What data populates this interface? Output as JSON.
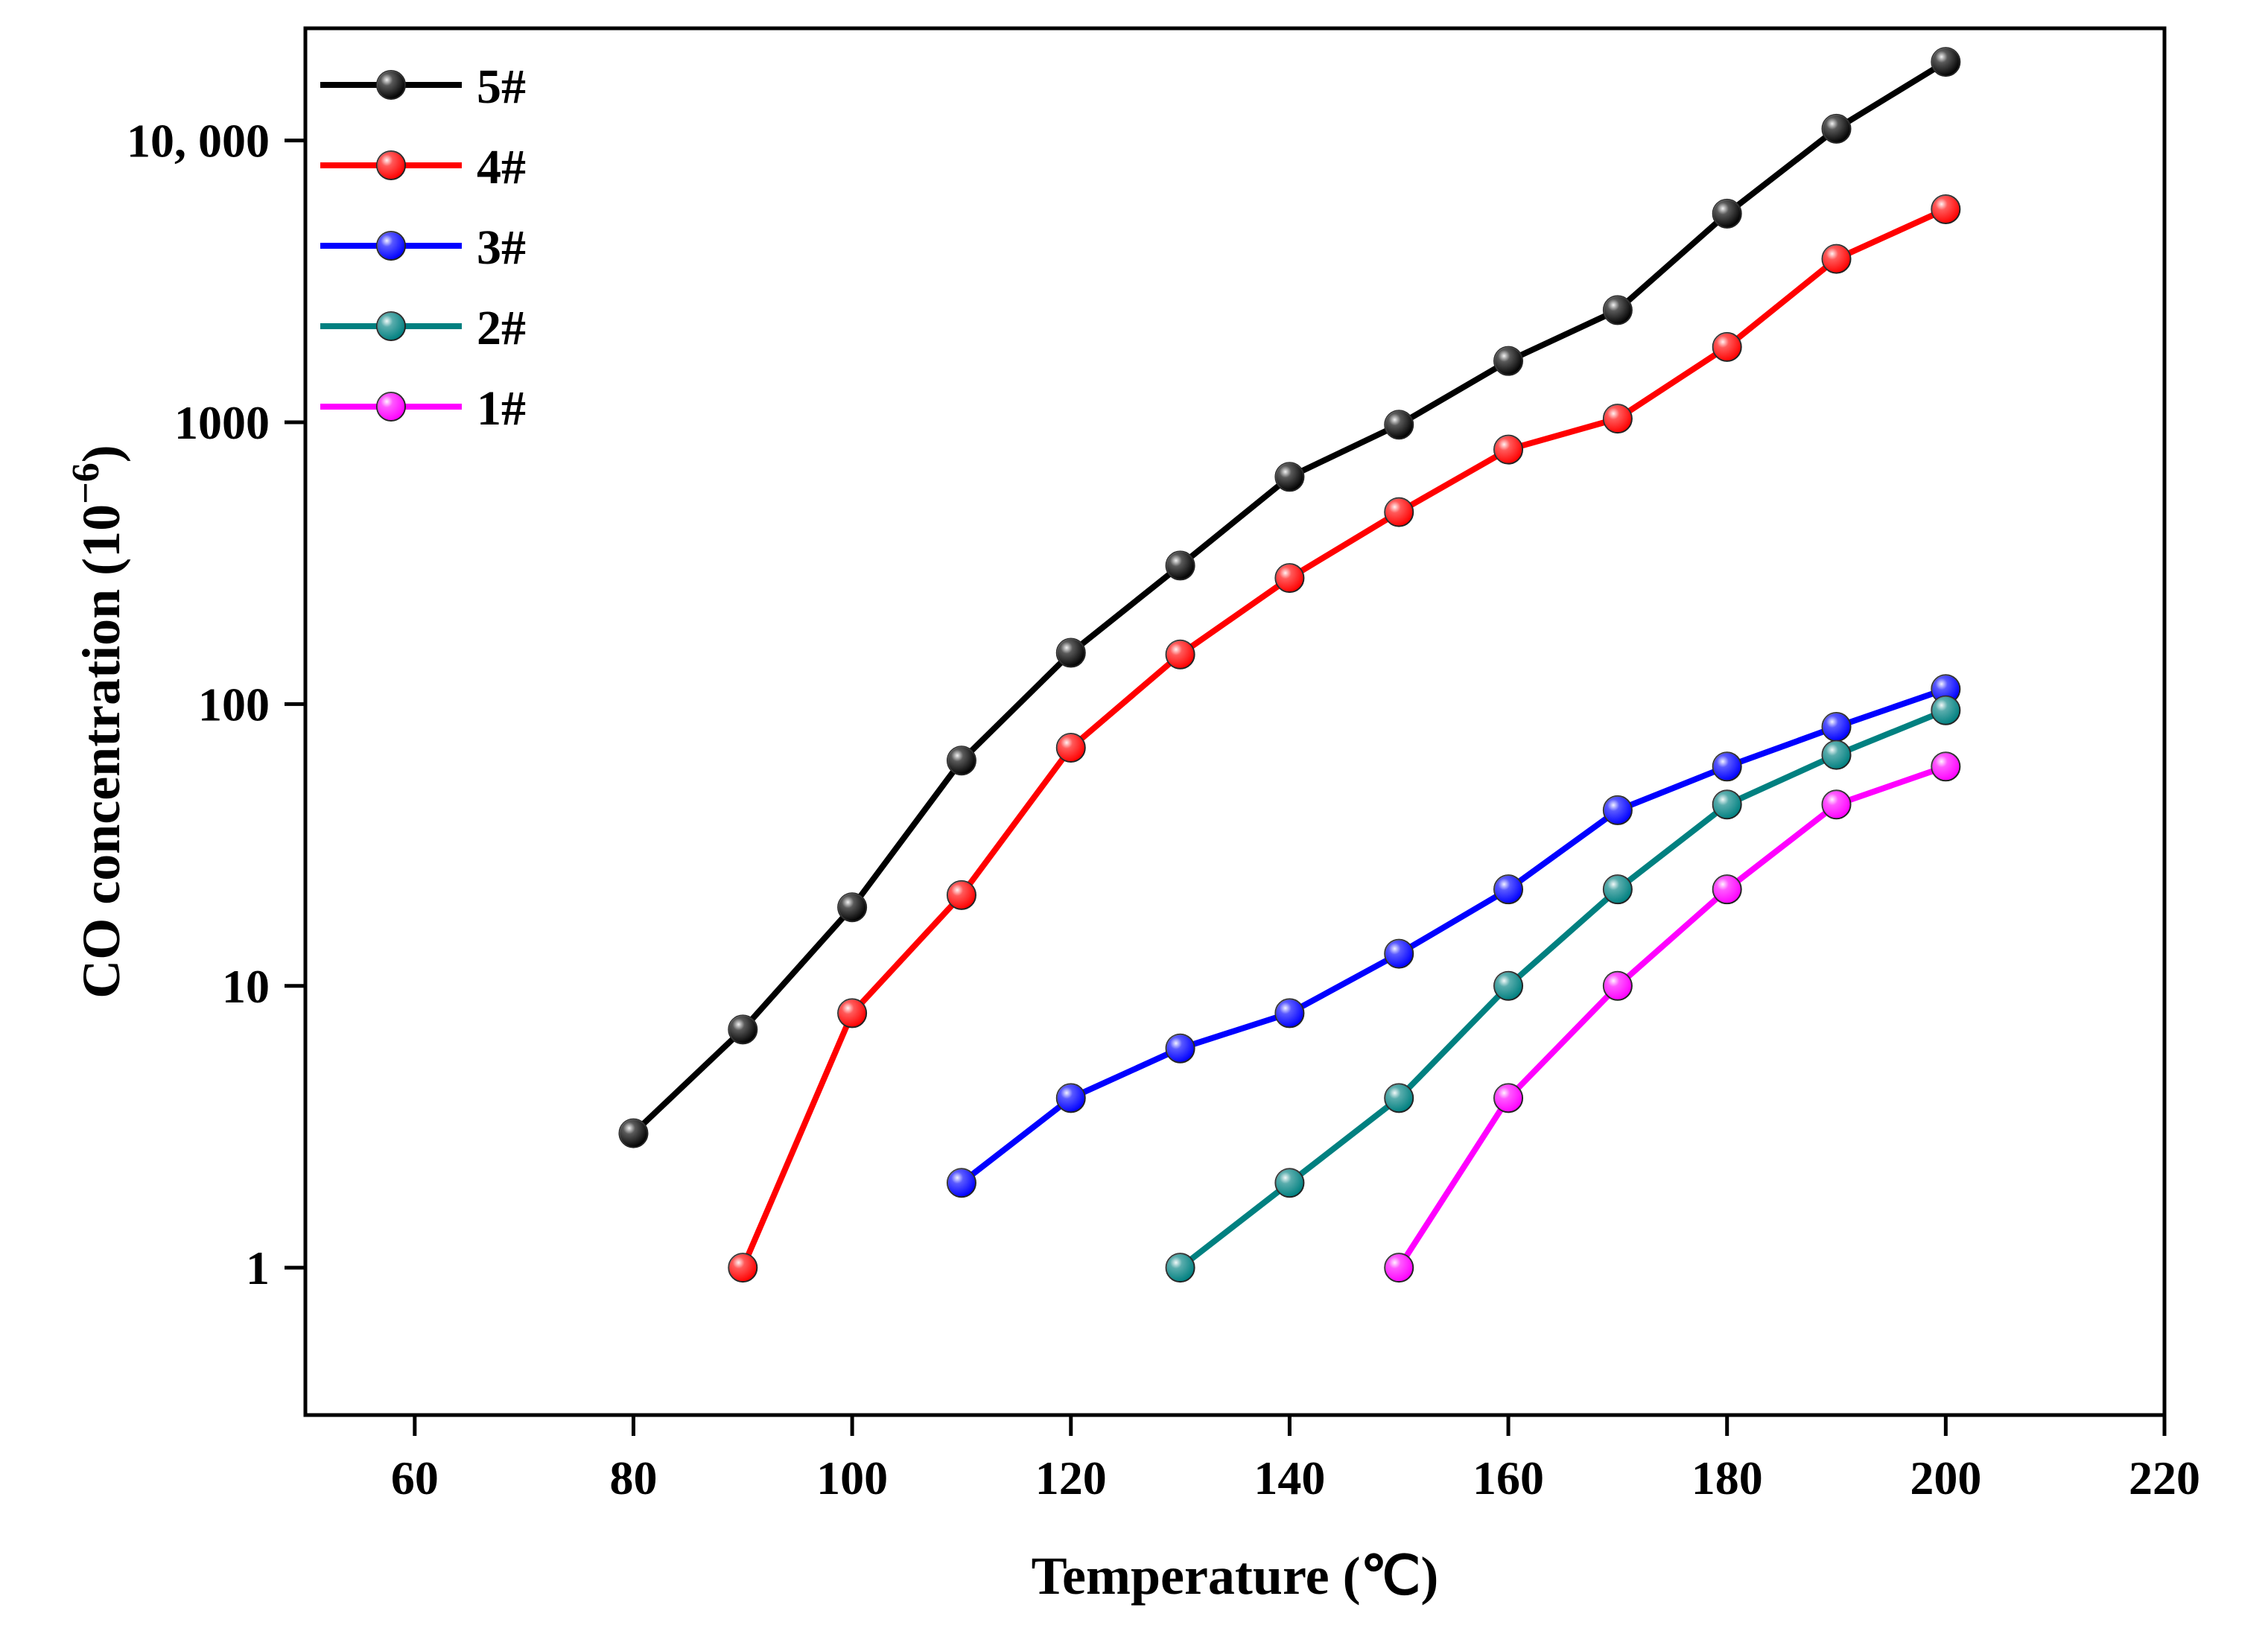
{
  "chart_data": {
    "type": "line",
    "title": "",
    "xlabel": "Temperature (℃)",
    "ylabel": "CO concentration (10",
    "ylabel_superscript": "−6",
    "ylabel_close": ")",
    "xlim": [
      50,
      220
    ],
    "ylim": [
      0.3,
      25000
    ],
    "yscale": "log",
    "x_ticks": [
      60,
      80,
      100,
      120,
      140,
      160,
      180,
      200,
      220
    ],
    "x_tick_labels": [
      "60",
      "80",
      "100",
      "120",
      "140",
      "160",
      "180",
      "200",
      "220"
    ],
    "y_ticks": [
      1,
      10,
      100,
      1000,
      10000
    ],
    "y_tick_labels": [
      "1",
      "10",
      "100",
      "1000",
      "10, 000"
    ],
    "legend_position": "top-left",
    "series": [
      {
        "name": "5#",
        "color": "#000000",
        "x": [
          80,
          90,
          100,
          110,
          120,
          130,
          140,
          150,
          160,
          170,
          180,
          190,
          200
        ],
        "values": [
          3,
          7,
          19,
          63,
          152,
          310,
          640,
          980,
          1650,
          2500,
          5500,
          11000,
          19000
        ]
      },
      {
        "name": "4#",
        "color": "#ff0000",
        "x": [
          90,
          100,
          110,
          120,
          130,
          140,
          150,
          160,
          170,
          180,
          190,
          200
        ],
        "values": [
          1,
          8,
          21,
          70,
          150,
          280,
          480,
          800,
          1030,
          1850,
          3800,
          5700
        ]
      },
      {
        "name": "3#",
        "color": "#0000ff",
        "x": [
          110,
          120,
          130,
          140,
          150,
          160,
          170,
          180,
          190,
          200
        ],
        "values": [
          2,
          4,
          6,
          8,
          13,
          22,
          42,
          60,
          83,
          113
        ]
      },
      {
        "name": "2#",
        "color": "#008080",
        "x": [
          130,
          140,
          150,
          160,
          170,
          180,
          190,
          200
        ],
        "values": [
          1,
          2,
          4,
          10,
          22,
          44,
          66,
          95
        ]
      },
      {
        "name": "1#",
        "color": "#ff00ff",
        "x": [
          150,
          160,
          170,
          180,
          190,
          200
        ],
        "values": [
          1,
          4,
          10,
          22,
          44,
          60
        ]
      }
    ]
  }
}
